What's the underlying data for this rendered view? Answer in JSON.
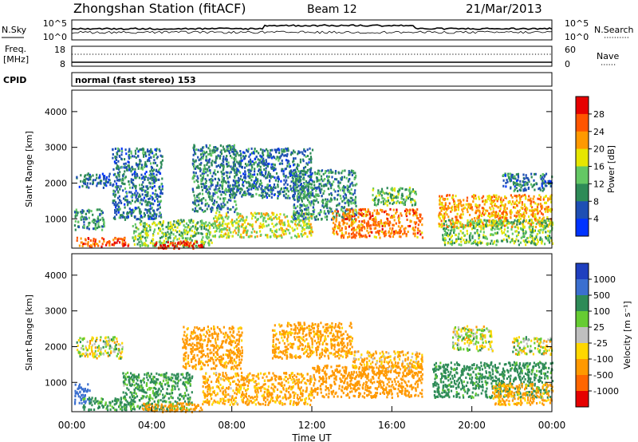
{
  "header": {
    "station": "Zhongshan Station (fitACF)",
    "beam": "Beam 12",
    "date": "21/Mar/2013"
  },
  "top_panels": {
    "nsky_label": "N.Sky",
    "nsearch_label": "N.Search",
    "nsky_ticks": [
      "10^5",
      "10^0"
    ],
    "nsearch_ticks": [
      "10^5",
      "10^0"
    ],
    "freq_label": "Freq.",
    "freq_unit": "[MHz]",
    "freq_ticks": [
      "18",
      "8"
    ],
    "nave_label": "Nave",
    "nave_ticks": [
      "60",
      "0"
    ],
    "cpid_label": "CPID",
    "cpid_text": "normal (fast stereo) 153"
  },
  "chart_data": [
    {
      "type": "heatmap",
      "name": "power",
      "ylabel": "Slant Range [km]",
      "yticks": [
        "4000",
        "3000",
        "2000",
        "1000"
      ],
      "ylim": [
        180,
        4600
      ],
      "xlim": [
        0,
        24
      ],
      "colorbar": {
        "label": "Power [dB]",
        "ticks": [
          "28",
          "24",
          "20",
          "16",
          "12",
          "8",
          "4"
        ],
        "range": [
          0,
          32
        ],
        "colors": [
          "#0033ff",
          "#1e4fb4",
          "#2e8b57",
          "#64c864",
          "#e6e600",
          "#ff9900",
          "#ff5500",
          "#e60000"
        ]
      },
      "regions": [
        {
          "t": [
            0.2,
            1.9
          ],
          "r": [
            1900,
            2300
          ],
          "v": 7
        },
        {
          "t": [
            0.1,
            1.6
          ],
          "r": [
            700,
            1300
          ],
          "v": 11
        },
        {
          "t": [
            0.2,
            2.8
          ],
          "r": [
            250,
            500
          ],
          "v": 26
        },
        {
          "t": [
            2.0,
            4.5
          ],
          "r": [
            1000,
            3000
          ],
          "v": 8
        },
        {
          "t": [
            3.0,
            7.0
          ],
          "r": [
            250,
            1000
          ],
          "v": 14
        },
        {
          "t": [
            4.0,
            6.5
          ],
          "r": [
            200,
            400
          ],
          "v": 29
        },
        {
          "t": [
            6.0,
            8.2
          ],
          "r": [
            1200,
            3100
          ],
          "v": 9
        },
        {
          "t": [
            7.0,
            12.0
          ],
          "r": [
            500,
            1200
          ],
          "v": 17
        },
        {
          "t": [
            8.0,
            12.0
          ],
          "r": [
            1600,
            3000
          ],
          "v": 8
        },
        {
          "t": [
            11.0,
            14.2
          ],
          "r": [
            1000,
            2400
          ],
          "v": 10
        },
        {
          "t": [
            13.0,
            17.5
          ],
          "r": [
            500,
            1300
          ],
          "v": 24
        },
        {
          "t": [
            15.0,
            17.2
          ],
          "r": [
            1400,
            1900
          ],
          "v": 13
        },
        {
          "t": [
            18.3,
            24.0
          ],
          "r": [
            800,
            1700
          ],
          "v": 22
        },
        {
          "t": [
            18.5,
            24.0
          ],
          "r": [
            300,
            1000
          ],
          "v": 14
        },
        {
          "t": [
            21.5,
            24.0
          ],
          "r": [
            1800,
            2300
          ],
          "v": 8
        }
      ]
    },
    {
      "type": "heatmap",
      "name": "velocity",
      "ylabel": "Slant Range [km]",
      "yticks": [
        "4000",
        "3000",
        "2000",
        "1000"
      ],
      "ylim": [
        180,
        4600
      ],
      "xlim": [
        0,
        24
      ],
      "xticks": [
        "00:00",
        "04:00",
        "08:00",
        "12:00",
        "16:00",
        "20:00",
        "00:00"
      ],
      "xlabel": "Time UT",
      "colorbar": {
        "label": "Velocity [m s⁻¹]",
        "ticks": [
          "1000",
          "500",
          "100",
          "25",
          "-25",
          "-100",
          "-500",
          "-1000"
        ],
        "colors": [
          "#1f3fbf",
          "#3b6fcf",
          "#2e8b57",
          "#66cc33",
          "#bfbfbf",
          "#ffd700",
          "#ff9900",
          "#ff6600",
          "#e60000"
        ]
      },
      "regions": [
        {
          "t": [
            0.1,
            0.9
          ],
          "r": [
            400,
            1000
          ],
          "v": 800
        },
        {
          "t": [
            0.2,
            2.5
          ],
          "r": [
            1700,
            2300
          ],
          "v": 0
        },
        {
          "t": [
            0.5,
            3.0
          ],
          "r": [
            250,
            600
          ],
          "v": 150
        },
        {
          "t": [
            2.5,
            6.0
          ],
          "r": [
            250,
            1300
          ],
          "v": 150
        },
        {
          "t": [
            3.5,
            6.5
          ],
          "r": [
            200,
            450
          ],
          "v": -300
        },
        {
          "t": [
            5.5,
            8.5
          ],
          "r": [
            1400,
            2600
          ],
          "v": -200
        },
        {
          "t": [
            6.5,
            12.0
          ],
          "r": [
            400,
            1300
          ],
          "v": -150
        },
        {
          "t": [
            10.0,
            14.0
          ],
          "r": [
            1700,
            2700
          ],
          "v": -180
        },
        {
          "t": [
            12.0,
            17.5
          ],
          "r": [
            600,
            1500
          ],
          "v": -300
        },
        {
          "t": [
            14.0,
            17.5
          ],
          "r": [
            1400,
            1900
          ],
          "v": -120
        },
        {
          "t": [
            18.0,
            24.0
          ],
          "r": [
            600,
            1600
          ],
          "v": 200
        },
        {
          "t": [
            19.0,
            21.0
          ],
          "r": [
            1900,
            2600
          ],
          "v": 0
        },
        {
          "t": [
            21.0,
            24.0
          ],
          "r": [
            400,
            1000
          ],
          "v": -150
        },
        {
          "t": [
            22.0,
            24.0
          ],
          "r": [
            1800,
            2300
          ],
          "v": 0
        }
      ]
    }
  ]
}
